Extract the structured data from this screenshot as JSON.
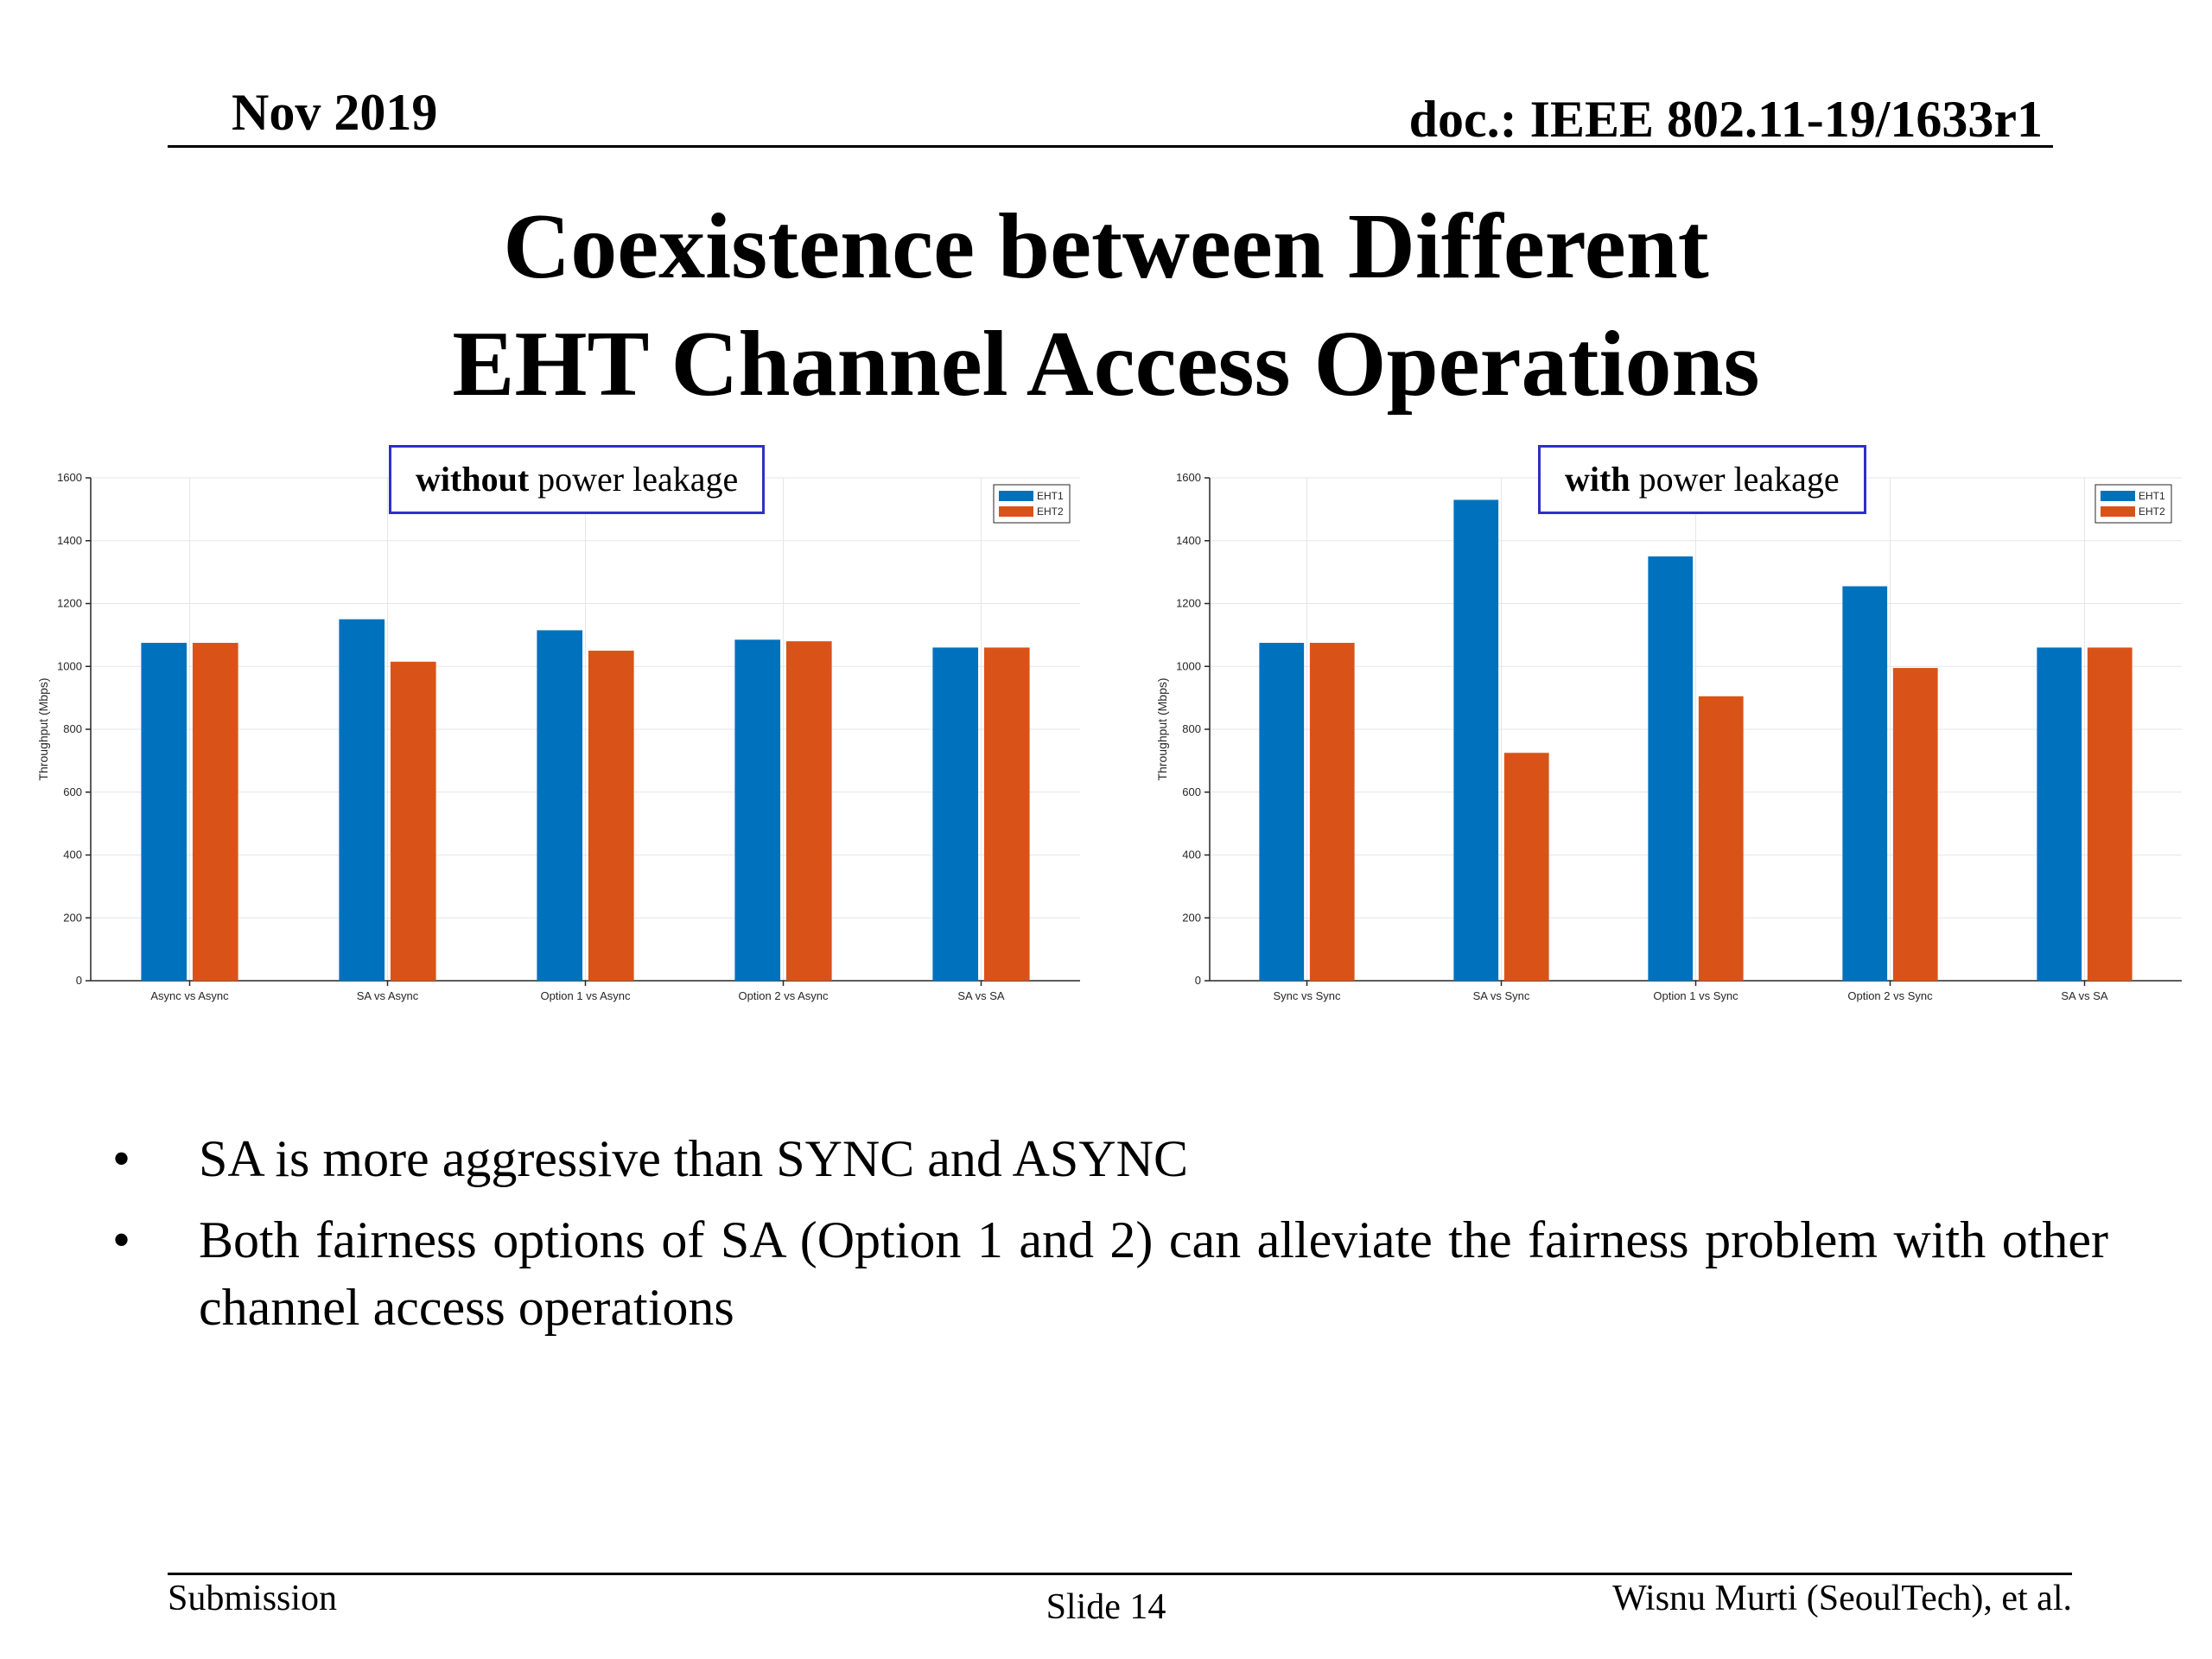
{
  "header": {
    "date": "Nov 2019",
    "doc": "doc.: IEEE 802.11-19/1633r1"
  },
  "title": {
    "line1": "Coexistence between Different",
    "line2": "EHT Channel Access Operations"
  },
  "annotations": {
    "left": {
      "bold": "without",
      "rest": " power leakage"
    },
    "right": {
      "bold": "with",
      "rest": " power leakage"
    }
  },
  "colors": {
    "eht1": "#0072BD",
    "eht2": "#D95319"
  },
  "chart_data": [
    {
      "type": "bar",
      "title": "",
      "xlabel": "",
      "ylabel": "Throughput (Mbps)",
      "ylim": [
        0,
        1600
      ],
      "yticks": [
        0,
        200,
        400,
        600,
        800,
        1000,
        1200,
        1400,
        1600
      ],
      "grid": true,
      "legend_position": "top-right",
      "categories": [
        "Async vs Async",
        "SA vs Async",
        "Option 1 vs Async",
        "Option 2 vs Async",
        "SA vs SA"
      ],
      "series": [
        {
          "name": "EHT1",
          "values": [
            1075,
            1150,
            1115,
            1085,
            1060
          ]
        },
        {
          "name": "EHT2",
          "values": [
            1075,
            1015,
            1050,
            1080,
            1060
          ]
        }
      ]
    },
    {
      "type": "bar",
      "title": "",
      "xlabel": "",
      "ylabel": "Throughput (Mbps)",
      "ylim": [
        0,
        1600
      ],
      "yticks": [
        0,
        200,
        400,
        600,
        800,
        1000,
        1200,
        1400,
        1600
      ],
      "grid": true,
      "legend_position": "top-right",
      "categories": [
        "Sync vs Sync",
        "SA vs Sync",
        "Option 1 vs Sync",
        "Option 2 vs Sync",
        "SA vs SA"
      ],
      "series": [
        {
          "name": "EHT1",
          "values": [
            1075,
            1530,
            1350,
            1255,
            1060
          ]
        },
        {
          "name": "EHT2",
          "values": [
            1075,
            725,
            905,
            995,
            1060
          ]
        }
      ]
    }
  ],
  "bullets": [
    "SA is more aggressive than SYNC and ASYNC",
    "Both fairness options of SA (Option 1 and 2) can alleviate the fairness problem with other channel access operations"
  ],
  "bullet_symbol": "•",
  "footer": {
    "left": "Submission",
    "center": "Slide 14",
    "right": "Wisnu Murti (SeoulTech), et al."
  }
}
